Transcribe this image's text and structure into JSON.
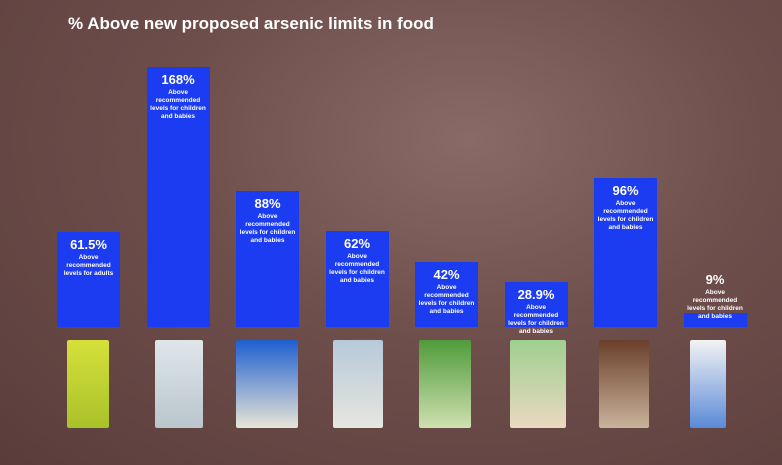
{
  "chart_data": {
    "type": "bar",
    "title": "% Above new proposed arsenic limits in food",
    "values": [
      61.5,
      168,
      88,
      62,
      42,
      28.9,
      96,
      9
    ],
    "value_labels": [
      "61.5%",
      "168%",
      "88%",
      "62%",
      "42%",
      "28.9%",
      "96%",
      "9%"
    ],
    "annotations": [
      "Above recommended levels for adults",
      "Above recommended levels for children and babies",
      "Above recommended levels for children and babies",
      "Above recommended levels for children and babies",
      "Above recommended levels for children and babies",
      "Above recommended levels for children and babies",
      "Above recommended levels for children and babies",
      "Above recommended levels for children and babies"
    ],
    "color": "#1c3cf2"
  }
}
